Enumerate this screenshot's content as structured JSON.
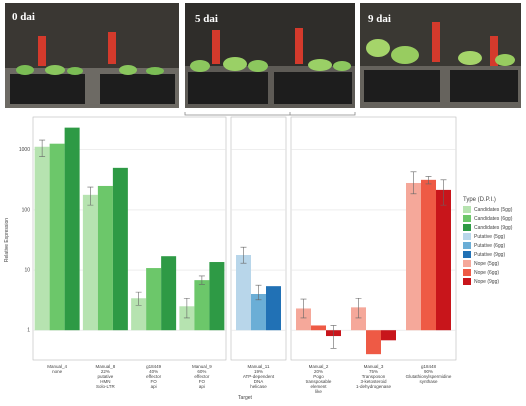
{
  "photos": [
    {
      "label": "0 dai"
    },
    {
      "label": "5 dai"
    },
    {
      "label": "9 dai"
    }
  ],
  "chart_data": {
    "type": "bar",
    "log_scale": true,
    "grid": true,
    "y_label": "Relative Expression",
    "x_label": "Target",
    "legend_title": "Type (D.P.I.)",
    "categories": [
      [
        "Manual_4",
        "none"
      ],
      [
        "Manual_8",
        "22%",
        "putative",
        "HMN",
        "Solo-LTR"
      ],
      [
        "g18449",
        "40%",
        "effector",
        "FO",
        "api"
      ],
      [
        "Manual_9",
        "60%",
        "effector",
        "FO",
        "api"
      ],
      [
        "Manual_11",
        "19%",
        "ATP-dependent",
        "DNA",
        "helicase"
      ],
      [
        "Manual_2",
        "20%",
        "Pogo",
        "transposable",
        "element",
        "like"
      ],
      [
        "Manual_3",
        "75%",
        "Transposon",
        "3-ketosteroid",
        "1-dehydrogenase"
      ],
      [
        "g18448",
        "90%",
        "Glutathionylspermidine",
        "synthase"
      ]
    ],
    "ylim": [
      0.32,
      3500
    ],
    "yticks": [
      1,
      10,
      100,
      1000
    ],
    "series": [
      {
        "name": "Candidates (5gg)",
        "color": "#b6e3b0",
        "slot": 0,
        "values": [
          1120,
          178,
          3.4,
          2.5,
          null,
          null,
          null,
          null
        ],
        "lower": [
          770,
          120,
          2.6,
          1.6,
          null,
          null,
          null,
          null
        ],
        "upper": [
          1450,
          240,
          4.3,
          3.4,
          null,
          null,
          null,
          null
        ]
      },
      {
        "name": "Candidates (6gg)",
        "color": "#6cc76a",
        "slot": 1,
        "values": [
          1260,
          250,
          10.8,
          6.8,
          null,
          null,
          null,
          null
        ],
        "lower": [
          null,
          null,
          null,
          5.8,
          null,
          null,
          null,
          null
        ],
        "upper": [
          null,
          null,
          null,
          8,
          null,
          null,
          null,
          null
        ]
      },
      {
        "name": "Candidates (9gg)",
        "color": "#2e9a45",
        "slot": 2,
        "values": [
          2330,
          500,
          17,
          13.6,
          null,
          null,
          null,
          null
        ],
        "lower": [
          null,
          null,
          null,
          null,
          null,
          null,
          null,
          null
        ],
        "upper": [
          null,
          null,
          null,
          null,
          null,
          null,
          null,
          null
        ]
      },
      {
        "name": "Putative (5gg)",
        "color": "#b8d6ea",
        "slot": 0,
        "values": [
          null,
          null,
          null,
          null,
          17.8,
          null,
          null,
          null
        ],
        "lower": [
          null,
          null,
          null,
          null,
          13,
          null,
          null,
          null
        ],
        "upper": [
          null,
          null,
          null,
          null,
          24,
          null,
          null,
          null
        ]
      },
      {
        "name": "Putative (6gg)",
        "color": "#6baed6",
        "slot": 1,
        "values": [
          null,
          null,
          null,
          null,
          4,
          null,
          null,
          null
        ],
        "lower": [
          null,
          null,
          null,
          null,
          3.2,
          null,
          null,
          null
        ],
        "upper": [
          null,
          null,
          null,
          null,
          5.6,
          null,
          null,
          null
        ]
      },
      {
        "name": "Putative (9gg)",
        "color": "#2171b5",
        "slot": 2,
        "values": [
          null,
          null,
          null,
          null,
          5.4,
          null,
          null,
          null
        ],
        "lower": [
          null,
          null,
          null,
          null,
          null,
          null,
          null,
          null
        ],
        "upper": [
          null,
          null,
          null,
          null,
          null,
          null,
          null,
          null
        ]
      },
      {
        "name": "Nope (5gg)",
        "color": "#f5a89a",
        "slot": 0,
        "values": [
          null,
          null,
          null,
          null,
          null,
          2.3,
          2.4,
          280
        ],
        "lower": [
          null,
          null,
          null,
          null,
          null,
          1.6,
          1.6,
          185
        ],
        "upper": [
          null,
          null,
          null,
          null,
          null,
          3.3,
          3.4,
          430
        ]
      },
      {
        "name": "Nope (6gg)",
        "color": "#ee5a45",
        "slot": 1,
        "values": [
          null,
          null,
          null,
          null,
          null,
          1.2,
          0.4,
          316
        ],
        "lower": [
          null,
          null,
          null,
          null,
          null,
          null,
          null,
          270
        ],
        "upper": [
          null,
          null,
          null,
          null,
          null,
          null,
          null,
          360
        ]
      },
      {
        "name": "Nope (9gg)",
        "color": "#c8151b",
        "slot": 2,
        "values": [
          null,
          null,
          null,
          null,
          null,
          0.8,
          0.68,
          215
        ],
        "lower": [
          null,
          null,
          null,
          null,
          null,
          0.5,
          null,
          120
        ],
        "upper": [
          null,
          null,
          null,
          null,
          null,
          1.2,
          null,
          316
        ]
      }
    ]
  }
}
